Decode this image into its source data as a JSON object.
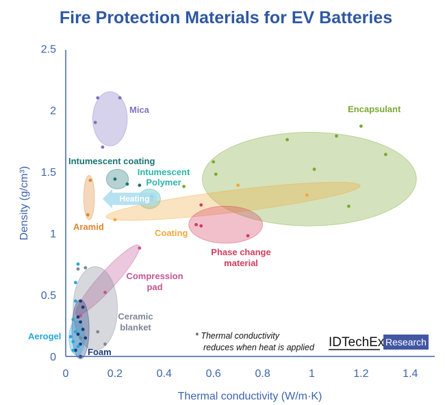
{
  "chart_data": {
    "type": "scatter",
    "title": "Fire Protection Materials for EV Batteries",
    "xlabel": "Thermal conductivity (W/m·K)",
    "ylabel": "Density (g/cm³)",
    "xlim": [
      0,
      1.5
    ],
    "ylim": [
      0,
      2.5
    ],
    "x_ticks": [
      "0",
      "0.2",
      "0.4",
      "0.6",
      "0.8",
      "1",
      "1.2",
      "1.4"
    ],
    "x_tick_values": [
      0,
      0.2,
      0.4,
      0.6,
      0.8,
      1.0,
      1.2,
      1.4
    ],
    "y_ticks": [
      "0",
      "0.5",
      "1",
      "1.5",
      "2",
      "2.5"
    ],
    "y_tick_values": [
      0,
      0.5,
      1.0,
      1.5,
      2.0,
      2.5
    ],
    "grid": false,
    "groups": [
      {
        "name": "Encapsulant",
        "color": "#7aa832",
        "ellipse": {
          "cx": 0.99,
          "cy": 1.44,
          "rx": 0.435,
          "ry": 0.38,
          "angle": 0
        },
        "points": [
          [
            0.48,
            1.38
          ],
          [
            0.6,
            1.58
          ],
          [
            0.61,
            1.48
          ],
          [
            0.9,
            1.76
          ],
          [
            1.01,
            1.52
          ],
          [
            1.1,
            1.79
          ],
          [
            1.2,
            1.87
          ],
          [
            1.3,
            1.64
          ],
          [
            1.15,
            1.22
          ]
        ]
      },
      {
        "name": "Mica",
        "color": "#8272c0",
        "ellipse": {
          "cx": 0.18,
          "cy": 1.93,
          "rx": 0.07,
          "ry": 0.22,
          "angle": 0
        },
        "points": [
          [
            0.13,
            2.1
          ],
          [
            0.22,
            2.1
          ],
          [
            0.15,
            1.7
          ],
          [
            0.12,
            1.9
          ]
        ]
      },
      {
        "name": "Intumescent coating",
        "color": "#1b7373",
        "ellipse": {
          "cx": 0.21,
          "cy": 1.44,
          "rx": 0.045,
          "ry": 0.08,
          "angle": 0
        },
        "points": [
          [
            0.2,
            1.44
          ],
          [
            0.25,
            1.4
          ],
          [
            0.3,
            1.39
          ]
        ]
      },
      {
        "name": "Intumescent Polymer",
        "color": "#2bb5a8",
        "ellipse": {
          "cx": 0.34,
          "cy": 1.28,
          "rx": 0.045,
          "ry": 0.08,
          "angle": 0
        },
        "points": [
          [
            0.32,
            1.28
          ],
          [
            0.35,
            1.3
          ]
        ]
      },
      {
        "name": "Aramid",
        "color": "#e0862f",
        "ellipse": {
          "cx": 0.095,
          "cy": 1.29,
          "rx": 0.022,
          "ry": 0.18,
          "angle": 0
        },
        "points": [
          [
            0.1,
            1.43
          ],
          [
            0.09,
            1.15
          ]
        ]
      },
      {
        "name": "Coating",
        "color": "#f0a83c",
        "ellipse": {
          "cx": 0.68,
          "cy": 1.26,
          "rx": 0.52,
          "ry": 0.09,
          "angle": -7
        },
        "points": [
          [
            0.2,
            1.11
          ],
          [
            0.7,
            1.39
          ],
          [
            0.98,
            1.31
          ],
          [
            0.35,
            1.27
          ]
        ]
      },
      {
        "name": "Phase change material",
        "color": "#d43c5c",
        "ellipse": {
          "cx": 0.65,
          "cy": 1.07,
          "rx": 0.15,
          "ry": 0.15,
          "angle": 0
        },
        "points": [
          [
            0.55,
            1.23
          ],
          [
            0.53,
            1.07
          ],
          [
            0.55,
            1.06
          ],
          [
            0.74,
            0.98
          ]
        ]
      },
      {
        "name": "Compression pad",
        "color": "#c25596",
        "ellipse": {
          "cx": 0.17,
          "cy": 0.62,
          "rx": 0.19,
          "ry": 0.07,
          "angle": -48
        },
        "points": [
          [
            0.3,
            0.88
          ],
          [
            0.16,
            0.52
          ],
          [
            0.06,
            0.33
          ]
        ]
      },
      {
        "name": "Ceramic blanket",
        "color": "#7e8796",
        "ellipse": {
          "cx": 0.12,
          "cy": 0.39,
          "rx": 0.09,
          "ry": 0.34,
          "angle": 0
        },
        "points": [
          [
            0.05,
            0.71
          ],
          [
            0.08,
            0.72
          ],
          [
            0.13,
            0.2
          ],
          [
            0.16,
            0.1
          ],
          [
            0.06,
            0.15
          ]
        ]
      },
      {
        "name": "Foam",
        "color": "#1d3a7a",
        "ellipse": {
          "cx": 0.06,
          "cy": 0.22,
          "rx": 0.035,
          "ry": 0.24,
          "angle": 0
        },
        "points": [
          [
            0.06,
            0.45
          ],
          [
            0.05,
            0.32
          ],
          [
            0.06,
            0.28
          ],
          [
            0.07,
            0.22
          ],
          [
            0.05,
            0.18
          ],
          [
            0.08,
            0.15
          ],
          [
            0.06,
            0.1
          ],
          [
            0.04,
            0.05
          ],
          [
            0.06,
            0.0
          ],
          [
            0.07,
            0.4
          ]
        ]
      },
      {
        "name": "Aerogel",
        "color": "#26a6dc",
        "ellipse": {
          "cx": 0.045,
          "cy": 0.15,
          "rx": 0.032,
          "ry": 0.14,
          "angle": 0
        },
        "points": [
          [
            0.05,
            0.75
          ],
          [
            0.04,
            0.6
          ],
          [
            0.04,
            0.45
          ],
          [
            0.03,
            0.3
          ],
          [
            0.04,
            0.2
          ],
          [
            0.03,
            0.12
          ],
          [
            0.05,
            0.08
          ],
          [
            0.02,
            0.16
          ],
          [
            0.03,
            0.05
          ]
        ]
      }
    ],
    "heating_arrow": {
      "label": "Heating",
      "from": [
        0.37,
        1.28
      ],
      "to": [
        0.15,
        1.28
      ],
      "color": "#a9dcef"
    },
    "note": [
      "* Thermal conductivity",
      "reduces when heat is applied"
    ],
    "brand": {
      "name": "IDTechEx",
      "badge": "Research",
      "badge_color": "#4256a4"
    }
  }
}
